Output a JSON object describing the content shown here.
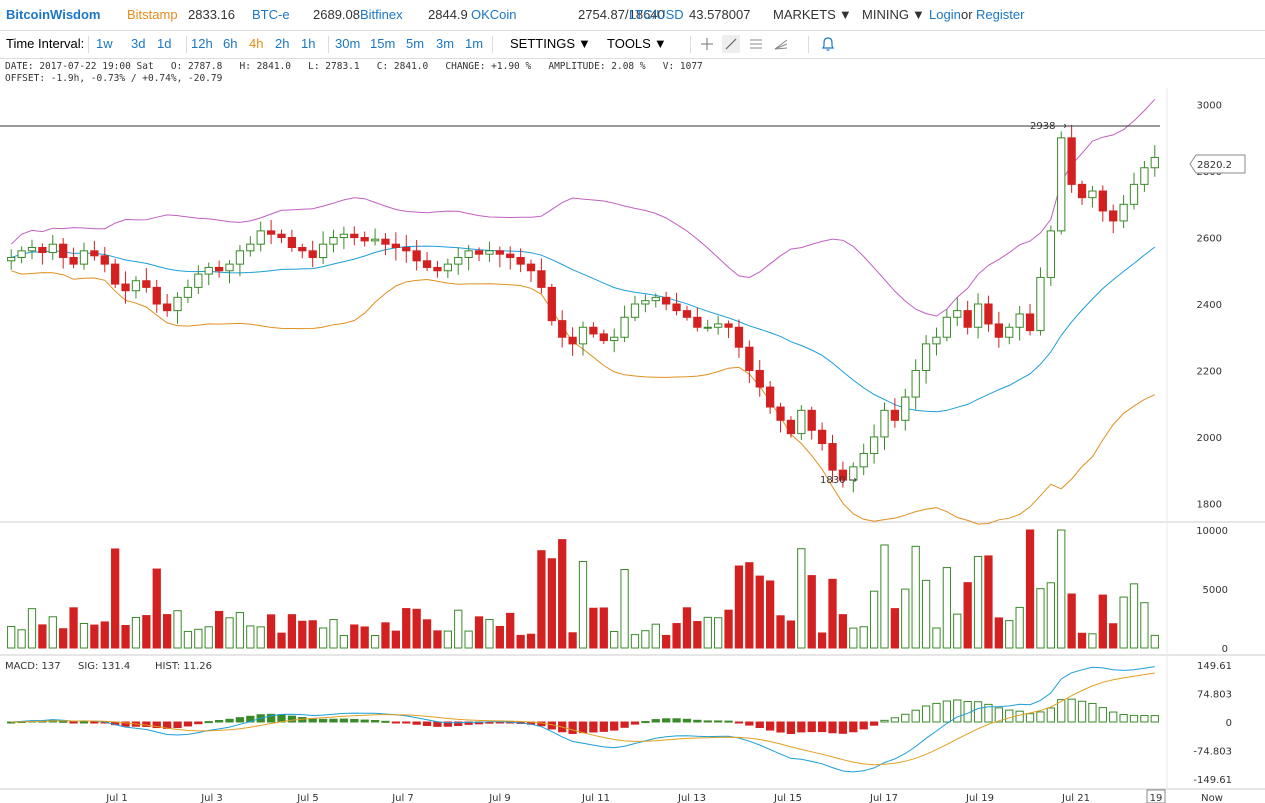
{
  "header": {
    "brand": "BitcoinWisdom",
    "markets": [
      {
        "name": "Bitstamp",
        "price": "2833.16",
        "color": "#e88b1a"
      },
      {
        "name": "BTC-e",
        "price": "2689.08",
        "color": "#1b77c5"
      },
      {
        "name": "Bitfinex",
        "price": "2844.9",
        "color": "#1b77c5"
      },
      {
        "name": "OKCoin",
        "price": "2754.87/18640",
        "color": "#1b77c5"
      },
      {
        "name": "LTC/USD",
        "price": "43.578007",
        "color": "#1b77c5"
      }
    ],
    "menus": [
      "MARKETS",
      "MINING"
    ],
    "login": "Login",
    "or": "or",
    "register": "Register"
  },
  "toolbar": {
    "time_interval_label": "Time Interval:",
    "intervals": [
      "1w",
      "3d",
      "1d",
      "12h",
      "6h",
      "4h",
      "2h",
      "1h",
      "30m",
      "15m",
      "5m",
      "3m",
      "1m"
    ],
    "active_interval": "4h",
    "settings": "SETTINGS",
    "tools": "TOOLS",
    "tool_icons": [
      "crosshair-icon",
      "line-draw-icon",
      "parallel-lines-icon",
      "fib-icon",
      "alert-bell-icon"
    ]
  },
  "info": {
    "line1": "DATE: 2017-07-22 19:00 Sat   O: 2787.8   H: 2841.0   L: 2783.1   C: 2841.0   CHANGE: +1.90 %   AMPLITUDE: 2.08 %   V: 1077",
    "line2": "OFFSET: -1.9h, -0.73% / +0.74%, -20.79"
  },
  "price_axis": {
    "ticks": [
      "3000",
      "2800",
      "2600",
      "2400",
      "2200",
      "2000",
      "1800"
    ],
    "current_price": "2820.2",
    "high_marker": "2938",
    "low_marker": "1830"
  },
  "volume_axis": {
    "ticks": [
      "10000",
      "5000",
      "0"
    ]
  },
  "macd": {
    "macd_label": "MACD: 137",
    "sig_label": "SIG: 131.4",
    "hist_label": "HIST: 11.26",
    "ticks": [
      "149.61",
      "74.803",
      "0",
      "-74.803",
      "-149.61"
    ],
    "macd_color": "#1b9ed8",
    "sig_color": "#e0a020"
  },
  "x_axis": {
    "labels": [
      "Jul 1",
      "Jul 3",
      "Jul 5",
      "Jul 7",
      "Jul 9",
      "Jul 11",
      "Jul 13",
      "Jul 15",
      "Jul 17",
      "Jul 19",
      "Jul 21"
    ],
    "current_label": "19",
    "now_label": "Now"
  },
  "colors": {
    "up": "#3a8a2a",
    "down": "#d32020",
    "bb_upper": "#c060c0",
    "bb_mid": "#1b9ed8",
    "bb_lower": "#e09020"
  },
  "chart_data": {
    "type": "candlestick",
    "ohlc_close_approx": [
      2540,
      2560,
      2570,
      2555,
      2580,
      2540,
      2520,
      2560,
      2545,
      2520,
      2460,
      2440,
      2470,
      2450,
      2400,
      2380,
      2420,
      2450,
      2490,
      2510,
      2500,
      2520,
      2560,
      2580,
      2620,
      2610,
      2600,
      2570,
      2560,
      2540,
      2580,
      2600,
      2610,
      2600,
      2590,
      2595,
      2580,
      2570,
      2560,
      2530,
      2510,
      2500,
      2520,
      2540,
      2560,
      2550,
      2560,
      2550,
      2540,
      2520,
      2500,
      2450,
      2350,
      2300,
      2280,
      2330,
      2310,
      2290,
      2300,
      2360,
      2400,
      2410,
      2420,
      2400,
      2380,
      2360,
      2330,
      2330,
      2340,
      2330,
      2270,
      2200,
      2150,
      2090,
      2050,
      2010,
      2080,
      2020,
      1980,
      1900,
      1870,
      1910,
      1950,
      2000,
      2080,
      2050,
      2120,
      2200,
      2280,
      2300,
      2360,
      2380,
      2330,
      2400,
      2340,
      2300,
      2330,
      2370,
      2320,
      2480,
      2620,
      2900,
      2760,
      2720,
      2740,
      2680,
      2650,
      2700,
      2760,
      2810,
      2841
    ],
    "volume_ylim": [
      0,
      10000
    ],
    "price_ylim": [
      1750,
      3050
    ],
    "macd_ylim": [
      -149.61,
      149.61
    ]
  }
}
